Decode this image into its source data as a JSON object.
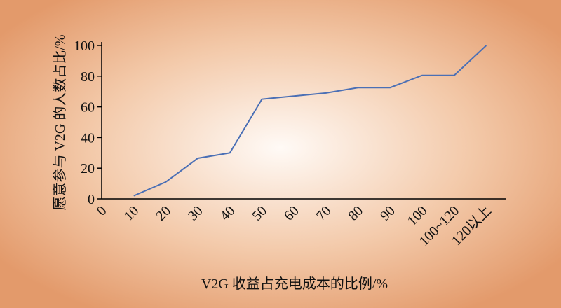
{
  "chart_data": {
    "type": "line",
    "x_label": "V2G 收益占充电成本的比例/%",
    "y_label": "愿意参与 V2G 的人数占比/%",
    "categories": [
      "0",
      "10",
      "20",
      "30",
      "40",
      "50",
      "60",
      "70",
      "80",
      "90",
      "100",
      "100~120",
      "120以上"
    ],
    "values": [
      null,
      2,
      11,
      26.5,
      30,
      65,
      67,
      69,
      72.5,
      72.5,
      80.5,
      80.5,
      100
    ],
    "color": "#4a6fb5",
    "ylim": [
      0,
      100
    ],
    "yticks": [
      0,
      20,
      40,
      60,
      80,
      100
    ]
  }
}
